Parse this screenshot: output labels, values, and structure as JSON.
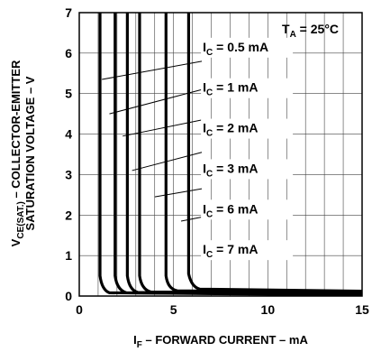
{
  "chart_data": {
    "type": "line",
    "xlabel_main": "I",
    "xlabel_sub": "F",
    "xlabel_rest": " – FORWARD CURRENT – mA",
    "ylabel_line1_main": "V",
    "ylabel_line1_sub": "CE(SAT.)",
    "ylabel_line1_rest": "  – COLLECTOR-EMITTER",
    "ylabel_line2": "SATURATION VOLTAGE – V",
    "condition": {
      "main": "T",
      "sub": "A",
      "rest": " = 25°C"
    },
    "xlim": [
      0,
      15
    ],
    "ylim": [
      0,
      7
    ],
    "x_ticks": [
      0,
      5,
      10,
      15
    ],
    "y_ticks": [
      0,
      1,
      2,
      3,
      4,
      5,
      6,
      7
    ],
    "grid": true,
    "series": [
      {
        "name": "0.5 mA",
        "label_main": "I",
        "label_sub": "C",
        "label_rest": " = 0.5 mA",
        "label_y": 6.0,
        "points": [
          [
            1.1,
            7
          ],
          [
            1.1,
            0.5
          ],
          [
            1.2,
            0.15
          ],
          [
            1.6,
            0.08
          ],
          [
            15,
            0.03
          ]
        ]
      },
      {
        "name": "1 mA",
        "label_main": "I",
        "label_sub": "C",
        "label_rest": " = 1 mA",
        "label_y": 5.0,
        "points": [
          [
            1.9,
            7
          ],
          [
            1.9,
            0.5
          ],
          [
            2.0,
            0.15
          ],
          [
            2.5,
            0.08
          ],
          [
            15,
            0.04
          ]
        ]
      },
      {
        "name": "2 mA",
        "label_main": "I",
        "label_sub": "C",
        "label_rest": " = 2 mA",
        "label_y": 4.0,
        "points": [
          [
            2.55,
            7
          ],
          [
            2.55,
            0.5
          ],
          [
            2.65,
            0.15
          ],
          [
            3.1,
            0.09
          ],
          [
            15,
            0.05
          ]
        ]
      },
      {
        "name": "3 mA",
        "label_main": "I",
        "label_sub": "C",
        "label_rest": " = 3 mA",
        "label_y": 3.0,
        "points": [
          [
            3.2,
            7
          ],
          [
            3.2,
            0.5
          ],
          [
            3.3,
            0.16
          ],
          [
            3.8,
            0.1
          ],
          [
            15,
            0.06
          ]
        ]
      },
      {
        "name": "6 mA",
        "label_main": "I",
        "label_sub": "C",
        "label_rest": " = 6 mA",
        "label_y": 2.0,
        "points": [
          [
            4.6,
            7
          ],
          [
            4.6,
            0.5
          ],
          [
            4.7,
            0.17
          ],
          [
            5.2,
            0.13
          ],
          [
            15,
            0.09
          ]
        ]
      },
      {
        "name": "7 mA",
        "label_main": "I",
        "label_sub": "C",
        "label_rest": " = 7 mA",
        "label_y": 1.0,
        "points": [
          [
            5.8,
            7
          ],
          [
            5.8,
            0.55
          ],
          [
            5.95,
            0.22
          ],
          [
            6.4,
            0.17
          ],
          [
            15,
            0.12
          ]
        ]
      }
    ],
    "leaders": [
      {
        "series": "0.5 mA",
        "from": [
          1.2,
          5.35
        ],
        "to": [
          6.5,
          5.8
        ]
      },
      {
        "series": "1 mA",
        "from": [
          1.6,
          4.5
        ],
        "to": [
          6.5,
          5.1
        ]
      },
      {
        "series": "2 mA",
        "from": [
          2.3,
          3.95
        ],
        "to": [
          6.5,
          4.35
        ]
      },
      {
        "series": "3 mA",
        "from": [
          2.8,
          3.1
        ],
        "to": [
          6.5,
          3.55
        ]
      },
      {
        "series": "6 mA",
        "from": [
          4.0,
          2.45
        ],
        "to": [
          6.5,
          2.65
        ]
      },
      {
        "series": "7 mA",
        "from": [
          5.4,
          1.85
        ],
        "to": [
          6.5,
          1.95
        ]
      }
    ]
  }
}
